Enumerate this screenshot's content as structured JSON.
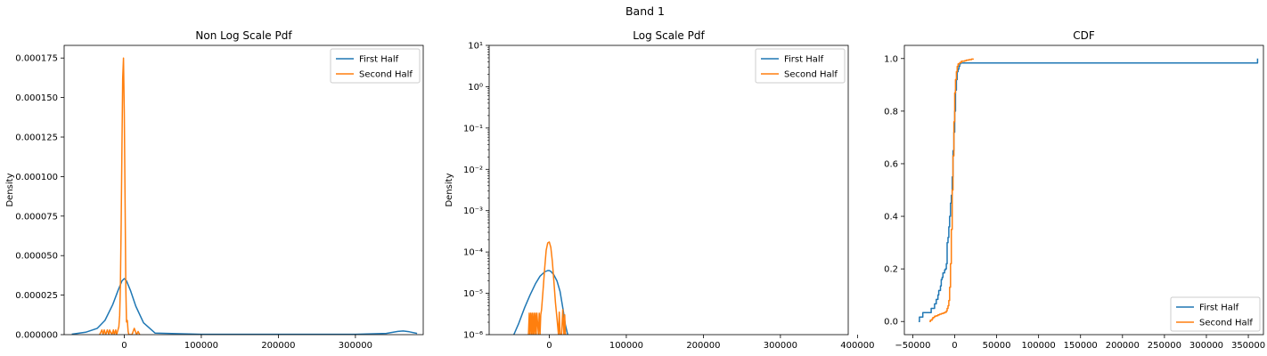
{
  "suptitle": "Band 1",
  "colors": {
    "first": "#1f77b4",
    "second": "#ff7f0e",
    "axis": "#000000",
    "legend_edge": "#cccccc"
  },
  "chart_data": [
    {
      "type": "line",
      "title": "Non Log Scale Pdf",
      "xlabel": "",
      "ylabel": "Density",
      "xlim": [
        -78000,
        388000
      ],
      "ylim": [
        0,
        0.000183
      ],
      "yscale": "linear",
      "xticks": [
        0,
        100000,
        200000,
        300000
      ],
      "xtick_labels": [
        "0",
        "100000",
        "200000",
        "300000"
      ],
      "yticks": [
        0,
        2.5e-05,
        5e-05,
        7.5e-05,
        0.0001,
        0.000125,
        0.00015,
        0.000175
      ],
      "ytick_labels": [
        "0.000000",
        "0.000025",
        "0.000050",
        "0.000075",
        "0.000100",
        "0.000125",
        "0.000150",
        "0.000175"
      ],
      "legend": {
        "position": "top-right",
        "entries": [
          "First Half",
          "Second Half"
        ]
      },
      "series": [
        {
          "name": "First Half",
          "color": "#1f77b4",
          "x": [
            -68000,
            -50000,
            -35000,
            -25000,
            -15000,
            -8000,
            -3000,
            0,
            3000,
            8000,
            15000,
            25000,
            40000,
            100000,
            200000,
            300000,
            340000,
            355000,
            362000,
            370000,
            380000
          ],
          "y": [
            3e-07,
            1.5e-06,
            4e-06,
            9e-06,
            1.9e-05,
            2.8e-05,
            3.4e-05,
            3.55e-05,
            3.4e-05,
            2.8e-05,
            1.8e-05,
            7.5e-06,
            1e-06,
            2e-07,
            2e-07,
            2e-07,
            8e-07,
            2e-06,
            2.3e-06,
            1.8e-06,
            8e-07
          ]
        },
        {
          "name": "Second Half",
          "color": "#ff7f0e",
          "x": [
            -32000,
            -29000,
            -27500,
            -26000,
            -24000,
            -22000,
            -20000,
            -19000,
            -16000,
            -14000,
            -13000,
            -11000,
            -10000,
            -9000,
            -7000,
            -6000,
            -5000,
            -4000,
            -3000,
            -2000,
            -1000,
            0,
            1000,
            2000,
            3000,
            4000,
            5000,
            6000,
            8000,
            10000,
            13000,
            16000,
            18000,
            20000
          ],
          "y": [
            0,
            3e-06,
            0,
            3e-06,
            0,
            3e-06,
            0,
            3e-06,
            0,
            3e-06,
            0,
            3e-06,
            0,
            1.5e-06,
            5e-06,
            1.2e-05,
            3e-05,
            7e-05,
            0.00012,
            0.000162,
            0.000175,
            0.00014,
            9e-05,
            3e-05,
            8e-06,
            9e-06,
            2e-06,
            0,
            0,
            0,
            4e-06,
            0,
            2e-06,
            0
          ]
        }
      ]
    },
    {
      "type": "line",
      "title": "Log Scale Pdf",
      "xlabel": "",
      "ylabel": "Density",
      "xlim": [
        -78000,
        388000
      ],
      "ylim": [
        1e-06,
        10
      ],
      "yscale": "log",
      "xticks": [
        0,
        100000,
        200000,
        300000,
        400000
      ],
      "xtick_labels": [
        "0",
        "100000",
        "200000",
        "300000",
        "400000"
      ],
      "yticks": [
        1e-06,
        1e-05,
        0.0001,
        0.001,
        0.01,
        0.1,
        1,
        10
      ],
      "ytick_labels": [
        "10⁻⁶",
        "10⁻⁵",
        "10⁻⁴",
        "10⁻³",
        "10⁻²",
        "10⁻¹",
        "10⁰",
        "10¹"
      ],
      "legend": {
        "position": "top-right",
        "entries": [
          "First Half",
          "Second Half"
        ]
      },
      "series": [
        {
          "name": "First Half",
          "color": "#1f77b4",
          "x": [
            -46000,
            -40000,
            -32000,
            -25000,
            -18000,
            -12000,
            -6000,
            -2000,
            0,
            2000,
            6000,
            10000,
            14000,
            18000,
            21000,
            24000
          ],
          "y": [
            1e-06,
            1.8e-06,
            4.5e-06,
            9e-06,
            1.7e-05,
            2.6e-05,
            3.3e-05,
            3.55e-05,
            3.55e-05,
            3.4e-05,
            2.8e-05,
            2e-05,
            1.1e-05,
            4e-06,
            1.7e-06,
            1e-06
          ]
        },
        {
          "name": "Second Half",
          "color": "#ff7f0e",
          "x": [
            -27000,
            -26000,
            -25000,
            -24000,
            -23000,
            -22000,
            -21000,
            -20000,
            -19000,
            -18000,
            -17000,
            -16000,
            -14000,
            -13000,
            -12000,
            -11000,
            -10000,
            -8000,
            -6000,
            -4000,
            -2000,
            0,
            2000,
            4000,
            6000,
            8000,
            10000,
            12000,
            13000,
            14000,
            16000,
            17500,
            19000,
            20000,
            21000,
            22000
          ],
          "y": [
            1e-06,
            3.3e-06,
            1e-06,
            3.3e-06,
            1e-06,
            3.3e-06,
            1e-06,
            3.3e-06,
            1e-06,
            3.3e-06,
            1e-06,
            3.3e-06,
            1e-06,
            3.3e-06,
            1e-06,
            3e-06,
            4e-06,
            1.2e-05,
            4e-05,
            0.00011,
            0.000165,
            0.000175,
            0.00013,
            6e-05,
            2e-05,
            6e-06,
            2.5e-06,
            1e-06,
            3.5e-06,
            1e-06,
            1e-06,
            4e-06,
            1e-06,
            3e-06,
            1e-06,
            1e-06
          ]
        }
      ]
    },
    {
      "type": "line",
      "title": "CDF",
      "xlabel": "",
      "ylabel": "",
      "xlim": [
        -60000,
        368000
      ],
      "ylim": [
        -0.05,
        1.05
      ],
      "yscale": "linear",
      "xticks": [
        -50000,
        0,
        50000,
        100000,
        150000,
        200000,
        250000,
        300000,
        350000
      ],
      "xtick_labels": [
        "−50000",
        "0",
        "50000",
        "100000",
        "150000",
        "200000",
        "250000",
        "300000",
        "350000"
      ],
      "yticks": [
        0,
        0.2,
        0.4,
        0.6,
        0.8,
        1.0
      ],
      "ytick_labels": [
        "0.0",
        "0.2",
        "0.4",
        "0.6",
        "0.8",
        "1.0"
      ],
      "legend": {
        "position": "bottom-right",
        "entries": [
          "First Half",
          "Second Half"
        ]
      },
      "series": [
        {
          "name": "First Half",
          "color": "#1f77b4",
          "step": true,
          "x": [
            -43000,
            -42000,
            -38000,
            -37000,
            -28000,
            -25000,
            -24000,
            -22000,
            -20000,
            -19000,
            -17000,
            -16000,
            -15000,
            -14000,
            -12000,
            -11000,
            -10000,
            -9000,
            -8000,
            -7000,
            -6000,
            -5000,
            -4000,
            -3000,
            -2000,
            -1000,
            0,
            1000,
            2000,
            3000,
            4000,
            5000,
            6000,
            7000,
            360000,
            361000
          ],
          "y": [
            0.0,
            0.017,
            0.034,
            0.034,
            0.05,
            0.05,
            0.067,
            0.084,
            0.101,
            0.118,
            0.135,
            0.16,
            0.168,
            0.185,
            0.196,
            0.2,
            0.22,
            0.3,
            0.32,
            0.36,
            0.4,
            0.45,
            0.48,
            0.55,
            0.65,
            0.72,
            0.8,
            0.88,
            0.92,
            0.95,
            0.96,
            0.97,
            0.98,
            0.983,
            0.983,
            1.0
          ]
        },
        {
          "name": "Second Half",
          "color": "#ff7f0e",
          "step": true,
          "x": [
            -30000,
            -29000,
            -27000,
            -26000,
            -24000,
            -22000,
            -20000,
            -18000,
            -16000,
            -14000,
            -12000,
            -10000,
            -9000,
            -8000,
            -7000,
            -6000,
            -5000,
            -4000,
            -3000,
            -2000,
            -1000,
            0,
            1000,
            2000,
            3000,
            4000,
            6000,
            8000,
            10000,
            12000,
            14000,
            17000,
            20000,
            22000
          ],
          "y": [
            0.0,
            0.005,
            0.01,
            0.015,
            0.02,
            0.022,
            0.025,
            0.028,
            0.03,
            0.032,
            0.035,
            0.04,
            0.05,
            0.06,
            0.08,
            0.13,
            0.22,
            0.35,
            0.5,
            0.63,
            0.76,
            0.87,
            0.92,
            0.95,
            0.97,
            0.98,
            0.985,
            0.99,
            0.99,
            0.992,
            0.994,
            0.996,
            0.998,
            1.0
          ]
        }
      ]
    }
  ]
}
